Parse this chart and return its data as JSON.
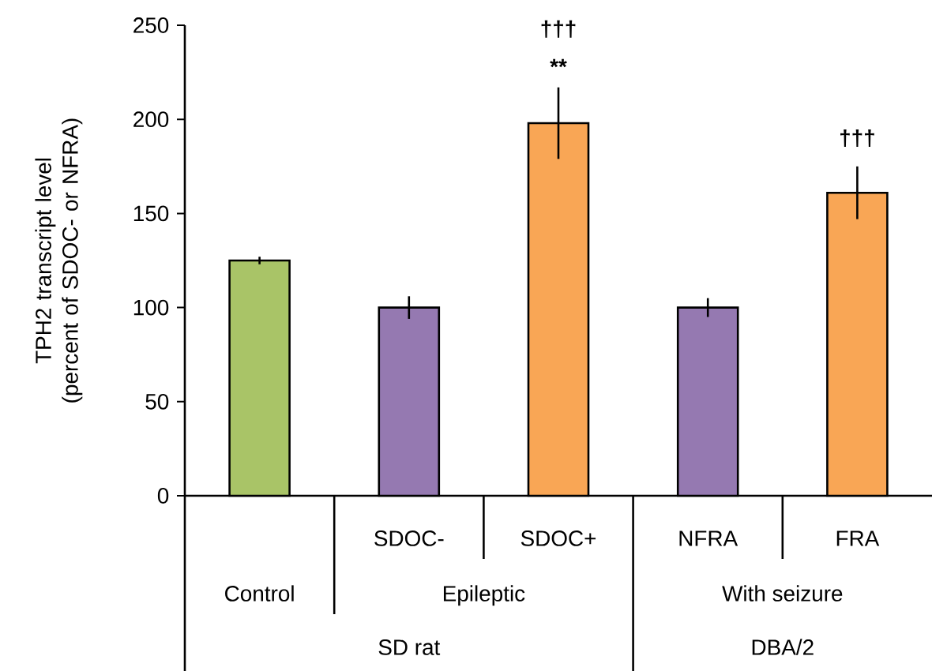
{
  "chart_data": {
    "type": "bar",
    "ylabel": "TPH2 transcript level (percent of SDOC- or NFRA)",
    "categories": [
      null,
      "SDOC-",
      "SDOC+",
      "NFRA",
      "FRA"
    ],
    "values": [
      125,
      100,
      198,
      100,
      161
    ],
    "errors": [
      2,
      6,
      19,
      5,
      14
    ],
    "colors": [
      "#a9c467",
      "#9579b1",
      "#f9a655",
      "#9579b1",
      "#f9a655"
    ],
    "ylim": [
      0,
      250
    ],
    "yticks": [
      0,
      50,
      100,
      150,
      200,
      250
    ],
    "grid": false,
    "annotations": [
      "†††",
      "**",
      "†††",
      "Control",
      "Epileptic",
      "With seizure",
      "SD rat",
      "DBA/2"
    ]
  }
}
